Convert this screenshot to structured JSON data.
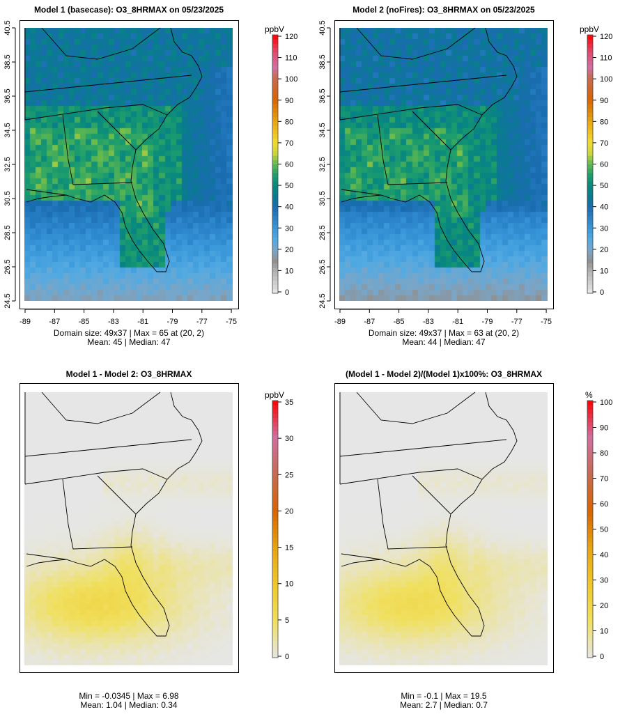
{
  "panels": [
    {
      "title": "Model 1 (basecase): O3_8HRMAX on 05/23/2025",
      "unit": "ppbV",
      "stat_line1": "Domain size: 49x37 | Max = 65 at (20, 2)",
      "stat_line2": "Mean: 45 |  Median: 47",
      "scale_ticks": [
        "0",
        "10",
        "20",
        "30",
        "40",
        "50",
        "60",
        "70",
        "80",
        "90",
        "100",
        "110",
        "120"
      ],
      "scale_max": 120
    },
    {
      "title": "Model 2 (noFires): O3_8HRMAX on 05/23/2025",
      "unit": "ppbV",
      "stat_line1": "Domain size: 49x37 | Max = 63 at (20, 2)",
      "stat_line2": "Mean: 44 |  Median: 47",
      "scale_ticks": [
        "0",
        "10",
        "20",
        "30",
        "40",
        "50",
        "60",
        "70",
        "80",
        "90",
        "100",
        "110",
        "120"
      ],
      "scale_max": 120
    },
    {
      "title": "Model 1 - Model 2: O3_8HRMAX",
      "unit": "ppbV",
      "stat_line1": "Min = -0.0345 | Max = 6.98",
      "stat_line2": "Mean: 1.04 |  Median: 0.34",
      "scale_ticks": [
        "0",
        "5",
        "10",
        "15",
        "20",
        "25",
        "30",
        "35"
      ],
      "scale_max": 35
    },
    {
      "title": "(Model 1 - Model 2)/(Model 1)x100%: O3_8HRMAX",
      "unit": "%",
      "stat_line1": "Min = -0.1 | Max = 19.5",
      "stat_line2": "Mean: 2.7 |  Median: 0.7",
      "scale_ticks": [
        "0",
        "10",
        "20",
        "30",
        "40",
        "50",
        "60",
        "70",
        "80",
        "90",
        "100"
      ],
      "scale_max": 100
    }
  ],
  "axes": {
    "lat_ticks": [
      "24.5",
      "26.5",
      "28.5",
      "30.5",
      "32.5",
      "34.5",
      "36.5",
      "38.5",
      "40.5"
    ],
    "lon_ticks": [
      "-89",
      "-87",
      "-85",
      "-83",
      "-81",
      "-79",
      "-77",
      "-75"
    ]
  }
}
